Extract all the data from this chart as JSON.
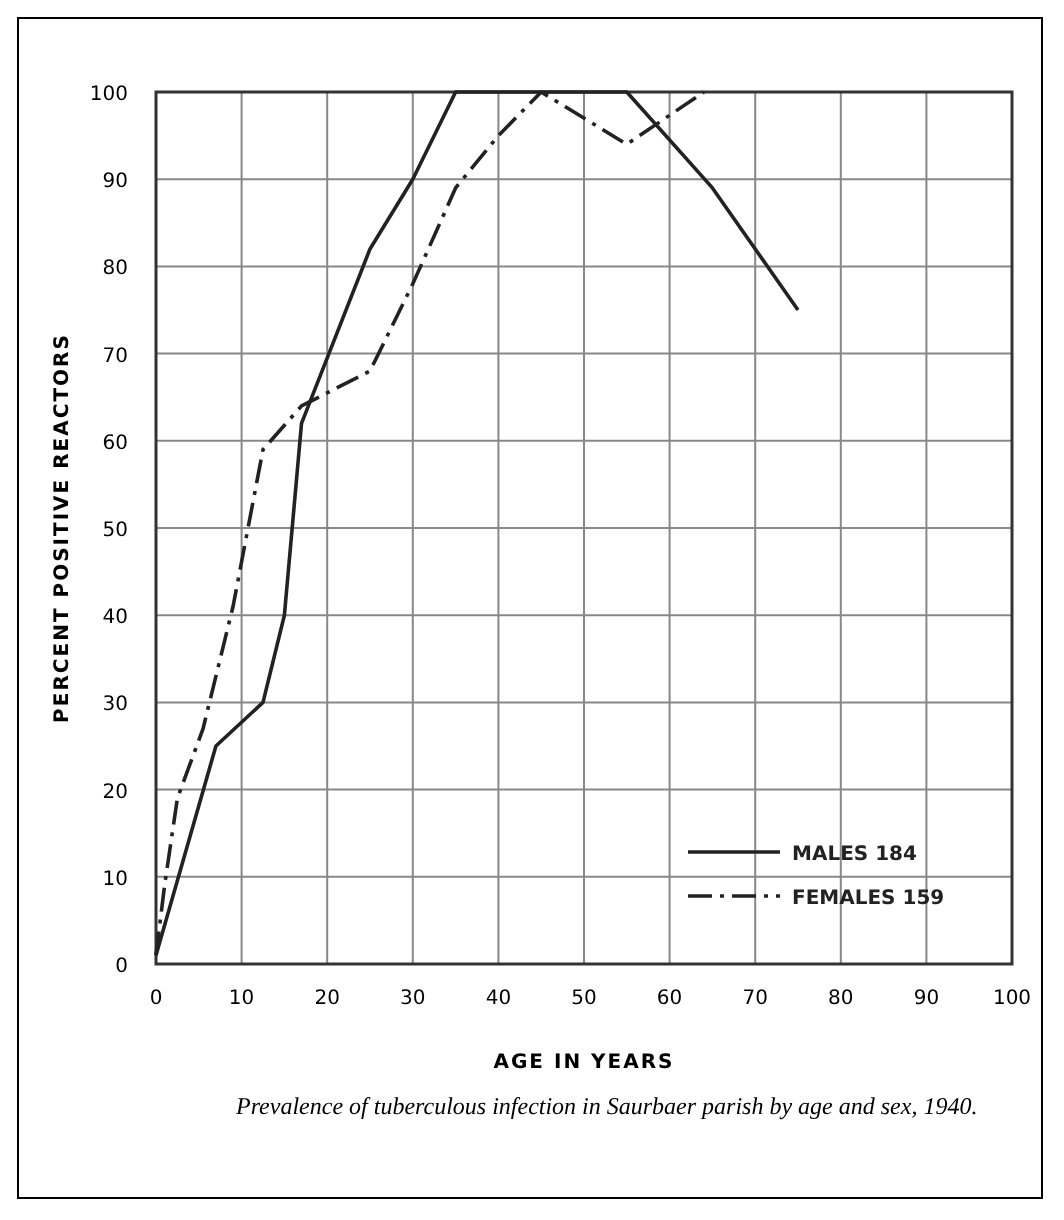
{
  "chart_data": {
    "type": "line",
    "xlabel": "AGE IN YEARS",
    "ylabel": "PERCENT POSITIVE REACTORS",
    "xlim": [
      0,
      100
    ],
    "xticks": [
      0,
      10,
      20,
      30,
      40,
      50,
      60,
      70,
      80,
      90,
      100
    ],
    "ylim": [
      0,
      100
    ],
    "yticks": [
      0,
      10,
      20,
      30,
      40,
      50,
      60,
      70,
      80,
      90,
      100
    ],
    "grid": true,
    "legend": "bottom right",
    "series": [
      {
        "name": "MALES 184",
        "color": "#222222",
        "line_style": "solid",
        "x": [
          0,
          7,
          12.5,
          15,
          17,
          25,
          30,
          35,
          55,
          65,
          75
        ],
        "values": [
          1,
          25,
          30,
          40,
          62,
          82,
          90,
          100,
          100,
          89,
          75
        ]
      },
      {
        "name": "FEMALES 159",
        "color": "#222222",
        "line_style": "dashdot",
        "x": [
          0,
          1,
          2.5,
          5.5,
          7.5,
          9,
          12.5,
          17,
          25,
          30,
          35,
          40,
          45,
          55,
          64
        ],
        "values": [
          1,
          9,
          19,
          27,
          35,
          41,
          59,
          64,
          68,
          78,
          89,
          95,
          100,
          94,
          100
        ]
      }
    ],
    "annotations": [
      "Prevalence of tuberculous infection in Saurbaer parish by age and sex, 1940."
    ]
  }
}
